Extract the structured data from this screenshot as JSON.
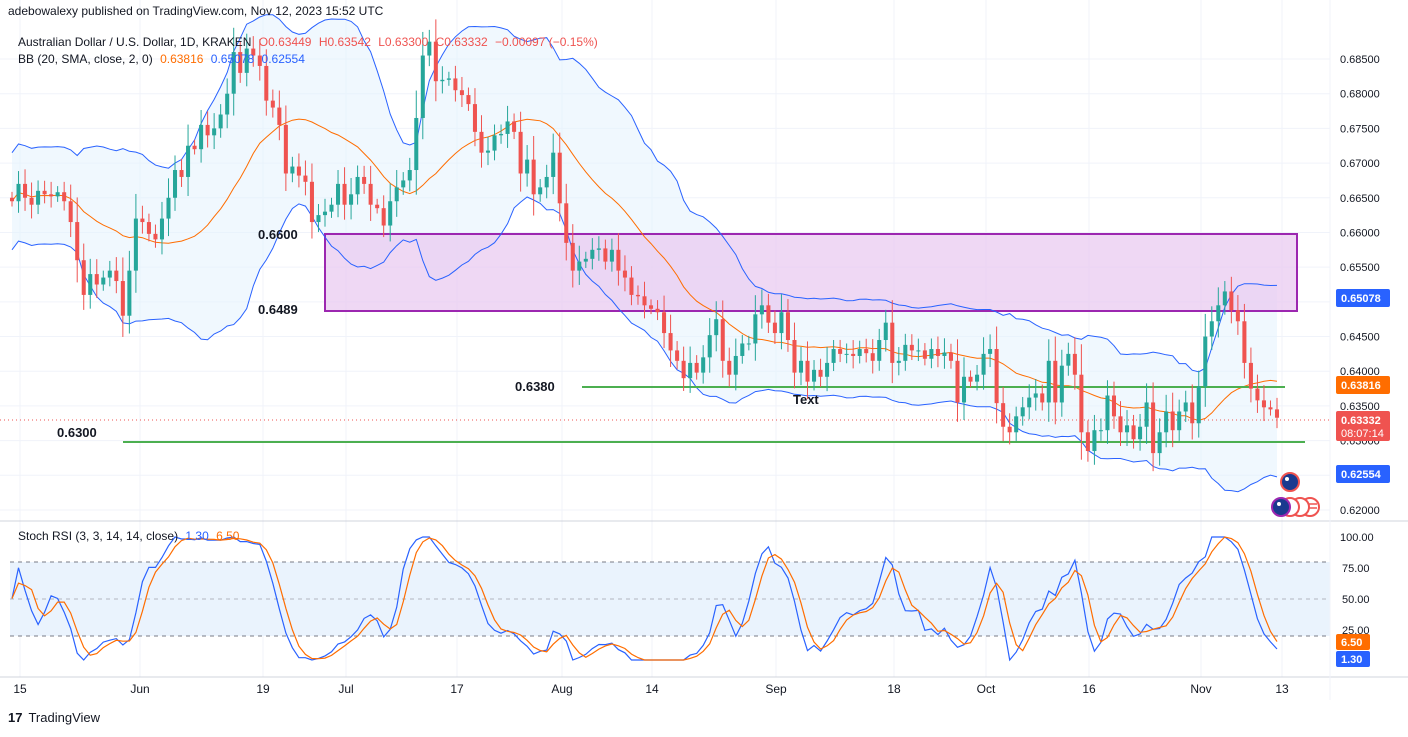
{
  "header": {
    "publisher": "adebowalexy published on TradingView.com, Nov 12, 2023 15:52 UTC"
  },
  "legend": {
    "symbol": "Australian Dollar / U.S. Dollar, 1D, KRAKEN",
    "open": "O0.63449",
    "high": "H0.63542",
    "low": "L0.63300",
    "close": "C0.63332",
    "change": "−0.00097 (−0.15%)",
    "bb_label": "BB (20, SMA, close, 2, 0)",
    "bb_mid": "0.63816",
    "bb_upper": "0.65078",
    "bb_lower": "0.62554",
    "stoch_label": "Stoch RSI (3, 3, 14, 14, close)",
    "stoch_k": "1.30",
    "stoch_d": "6.50"
  },
  "annotations": {
    "lvl_6600": "0.6600",
    "lvl_6489": "0.6489",
    "lvl_6380": "0.6380",
    "lvl_6300": "0.6300",
    "text_note": "Text"
  },
  "price_tags": {
    "upper": "0.65078",
    "mid": "0.63816",
    "last": "0.63332",
    "countdown": "08:07:14",
    "lower": "0.62554",
    "k": "1.30",
    "d": "6.50"
  },
  "footer": {
    "brand": "TradingView",
    "logo": "17"
  },
  "colors": {
    "up": "#26a69a",
    "down": "#ef5350",
    "bb_band": "#2962ff",
    "bb_mid": "#ff6d00",
    "zone": "#9c27b0",
    "support": "#4caf50"
  },
  "chart_data": {
    "type": "candlestick",
    "ylim": [
      0.6185,
      0.6895
    ],
    "yticks": [
      "0.68500",
      "0.68000",
      "0.67500",
      "0.67000",
      "0.66500",
      "0.66000",
      "0.65500",
      "0.65000",
      "0.64500",
      "0.64000",
      "0.63500",
      "0.63000",
      "0.62500",
      "0.62000"
    ],
    "xticks": [
      "15",
      "Jun",
      "19",
      "Jul",
      "17",
      "Aug",
      "14",
      "Sep",
      "18",
      "Oct",
      "16",
      "Nov",
      "13"
    ],
    "close_series": [
      0.6645,
      0.667,
      0.665,
      0.664,
      0.666,
      0.6655,
      0.6652,
      0.6658,
      0.6645,
      0.6615,
      0.656,
      0.651,
      0.654,
      0.6525,
      0.6535,
      0.6545,
      0.653,
      0.648,
      0.6545,
      0.662,
      0.6615,
      0.6598,
      0.659,
      0.662,
      0.665,
      0.669,
      0.668,
      0.6725,
      0.672,
      0.6755,
      0.674,
      0.675,
      0.677,
      0.68,
      0.686,
      0.683,
      0.6865,
      0.6855,
      0.684,
      0.679,
      0.678,
      0.6755,
      0.6685,
      0.6695,
      0.6682,
      0.6673,
      0.6615,
      0.6625,
      0.663,
      0.664,
      0.667,
      0.664,
      0.6655,
      0.668,
      0.667,
      0.664,
      0.6635,
      0.661,
      0.6645,
      0.6665,
      0.6675,
      0.669,
      0.6765,
      0.6855,
      0.6875,
      0.6818,
      0.682,
      0.6822,
      0.6805,
      0.6798,
      0.6785,
      0.6745,
      0.6715,
      0.6718,
      0.674,
      0.6742,
      0.676,
      0.6745,
      0.6685,
      0.6705,
      0.6655,
      0.6665,
      0.668,
      0.6715,
      0.6642,
      0.6585,
      0.6545,
      0.6558,
      0.6562,
      0.6575,
      0.6577,
      0.6558,
      0.6575,
      0.6545,
      0.6535,
      0.651,
      0.6508,
      0.6495,
      0.649,
      0.6485,
      0.6455,
      0.643,
      0.6415,
      0.639,
      0.6412,
      0.6398,
      0.642,
      0.6452,
      0.6475,
      0.6415,
      0.6395,
      0.6422,
      0.644,
      0.644,
      0.6482,
      0.6495,
      0.647,
      0.6455,
      0.6485,
      0.6445,
      0.6398,
      0.6415,
      0.6385,
      0.6402,
      0.6392,
      0.6412,
      0.6432,
      0.6425,
      0.6425,
      0.6422,
      0.6432,
      0.6426,
      0.6415,
      0.6445,
      0.647,
      0.6412,
      0.6415,
      0.6438,
      0.643,
      0.643,
      0.6418,
      0.6432,
      0.6422,
      0.6427,
      0.6415,
      0.6355,
      0.6392,
      0.6385,
      0.6395,
      0.6425,
      0.6432,
      0.6354,
      0.632,
      0.6312,
      0.6335,
      0.6348,
      0.6362,
      0.6368,
      0.6355,
      0.6415,
      0.6355,
      0.6408,
      0.6425,
      0.6395,
      0.6312,
      0.6285,
      0.6315,
      0.6315,
      0.6365,
      0.6335,
      0.6312,
      0.6322,
      0.6302,
      0.632,
      0.6355,
      0.6282,
      0.6312,
      0.6342,
      0.6315,
      0.6342,
      0.6355,
      0.6325,
      0.6378,
      0.645,
      0.6472,
      0.6495,
      0.6515,
      0.6488,
      0.6472,
      0.6412,
      0.6375,
      0.6358,
      0.6348,
      0.6345,
      0.6333
    ]
  }
}
